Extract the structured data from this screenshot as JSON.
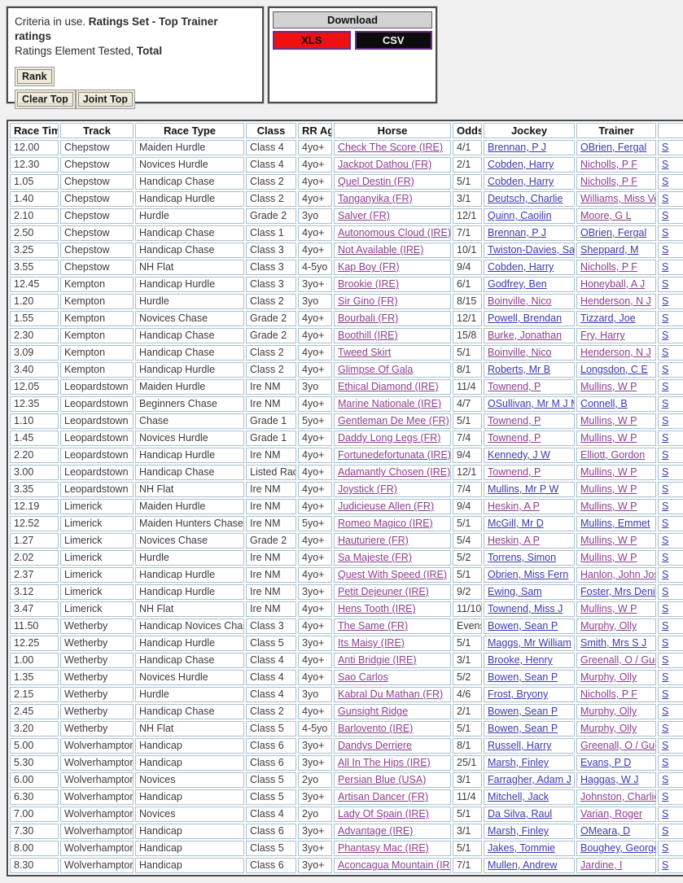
{
  "criteria_box": {
    "line1_prefix": "Criteria in use. ",
    "line1_bold": "Ratings Set - Top Trainer ratings",
    "line2_prefix": "Ratings Element Tested, ",
    "line2_bold": "Total",
    "rank_button": "Rank",
    "clear_top_button": "Clear Top",
    "joint_top_button": "Joint Top"
  },
  "download_box": {
    "title": "Download",
    "xls_button": "XLS",
    "csv_button": "CSV",
    "xls_color": "#ee1111",
    "csv_color": "#0c0c0c",
    "button_border_color": "#6a2d8f"
  },
  "link_colors": {
    "unvisited": "#3a3aae",
    "visited": "#8b3f8f"
  },
  "table": {
    "headers": [
      "Race Time",
      "Track",
      "Race Type",
      "Class",
      "RR Age",
      "Horse",
      "Odds",
      "Jockey",
      "Trainer"
    ],
    "clipped_header": "",
    "clipped_cell_text": "S",
    "rows": [
      {
        "time": "12.00",
        "track": "Chepstow",
        "race_type": "Maiden Hurdle",
        "race_class": "Class 4",
        "rr_age": "4yo+",
        "horse": "Check The Score (IRE)",
        "odds": "4/1",
        "jockey": "Brennan, P J",
        "trainer": "OBrien, Fergal",
        "jockey_visited": false,
        "trainer_visited": false
      },
      {
        "time": "12.30",
        "track": "Chepstow",
        "race_type": "Novices Hurdle",
        "race_class": "Class 4",
        "rr_age": "4yo+",
        "horse": "Jackpot Dathou (FR)",
        "odds": "2/1",
        "jockey": "Cobden, Harry",
        "trainer": "Nicholls, P F",
        "jockey_visited": false,
        "trainer_visited": true
      },
      {
        "time": "1.05",
        "track": "Chepstow",
        "race_type": "Handicap Chase",
        "race_class": "Class 2",
        "rr_age": "4yo+",
        "horse": "Quel Destin (FR)",
        "odds": "5/1",
        "jockey": "Cobden, Harry",
        "trainer": "Nicholls, P F",
        "jockey_visited": false,
        "trainer_visited": true
      },
      {
        "time": "1.40",
        "track": "Chepstow",
        "race_type": "Handicap Hurdle",
        "race_class": "Class 2",
        "rr_age": "4yo+",
        "horse": "Tanganyika (FR)",
        "odds": "3/1",
        "jockey": "Deutsch, Charlie",
        "trainer": "Williams, Miss Venetia",
        "jockey_visited": false,
        "trainer_visited": true
      },
      {
        "time": "2.10",
        "track": "Chepstow",
        "race_type": "Hurdle",
        "race_class": "Grade 2",
        "rr_age": "3yo",
        "horse": "Salver (FR)",
        "odds": "12/1",
        "jockey": "Quinn, Caoilin",
        "trainer": "Moore, G L",
        "jockey_visited": false,
        "trainer_visited": true
      },
      {
        "time": "2.50",
        "track": "Chepstow",
        "race_type": "Handicap Chase",
        "race_class": "Class 1",
        "rr_age": "4yo+",
        "horse": "Autonomous Cloud (IRE)",
        "odds": "7/1",
        "jockey": "Brennan, P J",
        "trainer": "OBrien, Fergal",
        "jockey_visited": false,
        "trainer_visited": false
      },
      {
        "time": "3.25",
        "track": "Chepstow",
        "race_type": "Handicap Chase",
        "race_class": "Class 3",
        "rr_age": "4yo+",
        "horse": "Not Available (IRE)",
        "odds": "10/1",
        "jockey": "Twiston-Davies, Sam",
        "trainer": "Sheppard, M",
        "jockey_visited": false,
        "trainer_visited": false
      },
      {
        "time": "3.55",
        "track": "Chepstow",
        "race_type": "NH Flat",
        "race_class": "Class 3",
        "rr_age": "4-5yo",
        "horse": "Kap Boy (FR)",
        "odds": "9/4",
        "jockey": "Cobden, Harry",
        "trainer": "Nicholls, P F",
        "jockey_visited": false,
        "trainer_visited": true
      },
      {
        "time": "12.45",
        "track": "Kempton",
        "race_type": "Handicap Hurdle",
        "race_class": "Class 3",
        "rr_age": "3yo+",
        "horse": "Brookie (IRE)",
        "odds": "6/1",
        "jockey": "Godfrey, Ben",
        "trainer": "Honeyball, A J",
        "jockey_visited": false,
        "trainer_visited": true
      },
      {
        "time": "1.20",
        "track": "Kempton",
        "race_type": "Hurdle",
        "race_class": "Class 2",
        "rr_age": "3yo",
        "horse": "Sir Gino (FR)",
        "odds": "8/15",
        "jockey": "Boinville, Nico",
        "trainer": "Henderson, N J",
        "jockey_visited": true,
        "trainer_visited": true
      },
      {
        "time": "1.55",
        "track": "Kempton",
        "race_type": "Novices Chase",
        "race_class": "Grade 2",
        "rr_age": "4yo+",
        "horse": "Bourbali (FR)",
        "odds": "12/1",
        "jockey": "Powell, Brendan",
        "trainer": "Tizzard, Joe",
        "jockey_visited": false,
        "trainer_visited": false
      },
      {
        "time": "2.30",
        "track": "Kempton",
        "race_type": "Handicap Chase",
        "race_class": "Grade 2",
        "rr_age": "4yo+",
        "horse": "Boothill (IRE)",
        "odds": "15/8",
        "jockey": "Burke, Jonathan",
        "trainer": "Fry, Harry",
        "jockey_visited": true,
        "trainer_visited": true
      },
      {
        "time": "3.09",
        "track": "Kempton",
        "race_type": "Handicap Chase",
        "race_class": "Class 2",
        "rr_age": "4yo+",
        "horse": "Tweed Skirt",
        "odds": "5/1",
        "jockey": "Boinville, Nico",
        "trainer": "Henderson, N J",
        "jockey_visited": true,
        "trainer_visited": true
      },
      {
        "time": "3.40",
        "track": "Kempton",
        "race_type": "Handicap Hurdle",
        "race_class": "Class 2",
        "rr_age": "4yo+",
        "horse": "Glimpse Of Gala",
        "odds": "8/1",
        "jockey": "Roberts, Mr B",
        "trainer": "Longsdon, C E",
        "jockey_visited": false,
        "trainer_visited": false
      },
      {
        "time": "12.05",
        "track": "Leopardstown",
        "race_type": "Maiden Hurdle",
        "race_class": "Ire NM",
        "rr_age": "3yo",
        "horse": "Ethical Diamond (IRE)",
        "odds": "11/4",
        "jockey": "Townend, P",
        "trainer": "Mullins, W P",
        "jockey_visited": true,
        "trainer_visited": true
      },
      {
        "time": "12.35",
        "track": "Leopardstown",
        "race_type": "Beginners Chase",
        "race_class": "Ire NM",
        "rr_age": "4yo+",
        "horse": "Marine Nationale (IRE)",
        "odds": "4/7",
        "jockey": "OSullivan, Mr M J M",
        "trainer": "Connell, B",
        "jockey_visited": false,
        "trainer_visited": false
      },
      {
        "time": "1.10",
        "track": "Leopardstown",
        "race_type": "Chase",
        "race_class": "Grade 1",
        "rr_age": "5yo+",
        "horse": "Gentleman De Mee (FR)",
        "odds": "5/1",
        "jockey": "Townend, P",
        "trainer": "Mullins, W P",
        "jockey_visited": true,
        "trainer_visited": true
      },
      {
        "time": "1.45",
        "track": "Leopardstown",
        "race_type": "Novices Hurdle",
        "race_class": "Grade 1",
        "rr_age": "4yo+",
        "horse": "Daddy Long Legs (FR)",
        "odds": "7/4",
        "jockey": "Townend, P",
        "trainer": "Mullins, W P",
        "jockey_visited": true,
        "trainer_visited": true
      },
      {
        "time": "2.20",
        "track": "Leopardstown",
        "race_type": "Handicap Hurdle",
        "race_class": "Ire NM",
        "rr_age": "4yo+",
        "horse": "Fortunedefortunata (IRE)",
        "odds": "9/4",
        "jockey": "Kennedy, J W",
        "trainer": "Elliott, Gordon",
        "jockey_visited": false,
        "trainer_visited": true
      },
      {
        "time": "3.00",
        "track": "Leopardstown",
        "race_type": "Handicap Chase",
        "race_class": "Listed Race",
        "rr_age": "4yo+",
        "horse": "Adamantly Chosen (IRE)",
        "odds": "12/1",
        "jockey": "Townend, P",
        "trainer": "Mullins, W P",
        "jockey_visited": true,
        "trainer_visited": true
      },
      {
        "time": "3.35",
        "track": "Leopardstown",
        "race_type": "NH Flat",
        "race_class": "Ire NM",
        "rr_age": "4yo+",
        "horse": "Joystick (FR)",
        "odds": "7/4",
        "jockey": "Mullins, Mr P W",
        "trainer": "Mullins, W P",
        "jockey_visited": false,
        "trainer_visited": true
      },
      {
        "time": "12.19",
        "track": "Limerick",
        "race_type": "Maiden Hurdle",
        "race_class": "Ire NM",
        "rr_age": "4yo+",
        "horse": "Judicieuse Allen (FR)",
        "odds": "9/4",
        "jockey": "Heskin, A P",
        "trainer": "Mullins, W P",
        "jockey_visited": true,
        "trainer_visited": true
      },
      {
        "time": "12.52",
        "track": "Limerick",
        "race_type": "Maiden Hunters Chase",
        "race_class": "Ire NM",
        "rr_age": "5yo+",
        "horse": "Romeo Magico (IRE)",
        "odds": "5/1",
        "jockey": "McGill, Mr D",
        "trainer": "Mullins, Emmet",
        "jockey_visited": false,
        "trainer_visited": false
      },
      {
        "time": "1.27",
        "track": "Limerick",
        "race_type": "Novices Chase",
        "race_class": "Grade 2",
        "rr_age": "4yo+",
        "horse": "Hauturiere (FR)",
        "odds": "5/4",
        "jockey": "Heskin, A P",
        "trainer": "Mullins, W P",
        "jockey_visited": true,
        "trainer_visited": true
      },
      {
        "time": "2.02",
        "track": "Limerick",
        "race_type": "Hurdle",
        "race_class": "Ire NM",
        "rr_age": "4yo+",
        "horse": "Sa Majeste (FR)",
        "odds": "5/2",
        "jockey": "Torrens, Simon",
        "trainer": "Mullins, W P",
        "jockey_visited": false,
        "trainer_visited": true
      },
      {
        "time": "2.37",
        "track": "Limerick",
        "race_type": "Handicap Hurdle",
        "race_class": "Ire NM",
        "rr_age": "4yo+",
        "horse": "Quest With Speed (IRE)",
        "odds": "5/1",
        "jockey": "Obrien, Miss Fern",
        "trainer": "Hanlon, John Joseph",
        "jockey_visited": false,
        "trainer_visited": true
      },
      {
        "time": "3.12",
        "track": "Limerick",
        "race_type": "Handicap Hurdle",
        "race_class": "Ire NM",
        "rr_age": "3yo+",
        "horse": "Petit Dejeuner (IRE)",
        "odds": "9/2",
        "jockey": "Ewing, Sam",
        "trainer": "Foster, Mrs Denise",
        "jockey_visited": false,
        "trainer_visited": false
      },
      {
        "time": "3.47",
        "track": "Limerick",
        "race_type": "NH Flat",
        "race_class": "Ire NM",
        "rr_age": "4yo+",
        "horse": "Hens Tooth (IRE)",
        "odds": "11/10",
        "jockey": "Townend, Miss J",
        "trainer": "Mullins, W P",
        "jockey_visited": false,
        "trainer_visited": true
      },
      {
        "time": "11.50",
        "track": "Wetherby",
        "race_type": "Handicap Novices Chase",
        "race_class": "Class 3",
        "rr_age": "4yo+",
        "horse": "The Same (FR)",
        "odds": "Evens",
        "jockey": "Bowen, Sean P",
        "trainer": "Murphy, Olly",
        "jockey_visited": false,
        "trainer_visited": true
      },
      {
        "time": "12.25",
        "track": "Wetherby",
        "race_type": "Handicap Hurdle",
        "race_class": "Class 5",
        "rr_age": "3yo+",
        "horse": "Its Maisy (IRE)",
        "odds": "5/1",
        "jockey": "Maggs, Mr William",
        "trainer": "Smith, Mrs S J",
        "jockey_visited": false,
        "trainer_visited": false
      },
      {
        "time": "1.00",
        "track": "Wetherby",
        "race_type": "Handicap Chase",
        "race_class": "Class 4",
        "rr_age": "4yo+",
        "horse": "Anti Bridgie (IRE)",
        "odds": "3/1",
        "jockey": "Brooke, Henry",
        "trainer": "Greenall, O / Guerriero, J",
        "jockey_visited": false,
        "trainer_visited": true
      },
      {
        "time": "1.35",
        "track": "Wetherby",
        "race_type": "Novices Hurdle",
        "race_class": "Class 4",
        "rr_age": "4yo+",
        "horse": "Sao Carlos",
        "odds": "5/2",
        "jockey": "Bowen, Sean P",
        "trainer": "Murphy, Olly",
        "jockey_visited": false,
        "trainer_visited": true
      },
      {
        "time": "2.15",
        "track": "Wetherby",
        "race_type": "Hurdle",
        "race_class": "Class 4",
        "rr_age": "3yo",
        "horse": "Kabral Du Mathan (FR)",
        "odds": "4/6",
        "jockey": "Frost, Bryony",
        "trainer": "Nicholls, P F",
        "jockey_visited": false,
        "trainer_visited": true
      },
      {
        "time": "2.45",
        "track": "Wetherby",
        "race_type": "Handicap Chase",
        "race_class": "Class 2",
        "rr_age": "4yo+",
        "horse": "Gunsight Ridge",
        "odds": "2/1",
        "jockey": "Bowen, Sean P",
        "trainer": "Murphy, Olly",
        "jockey_visited": false,
        "trainer_visited": true
      },
      {
        "time": "3.20",
        "track": "Wetherby",
        "race_type": "NH Flat",
        "race_class": "Class 5",
        "rr_age": "4-5yo",
        "horse": "Barlovento (IRE)",
        "odds": "5/1",
        "jockey": "Bowen, Sean P",
        "trainer": "Murphy, Olly",
        "jockey_visited": false,
        "trainer_visited": true
      },
      {
        "time": "5.00",
        "track": "Wolverhampton",
        "race_type": "Handicap",
        "race_class": "Class 6",
        "rr_age": "3yo+",
        "horse": "Dandys Derriere",
        "odds": "8/1",
        "jockey": "Russell, Harry",
        "trainer": "Greenall, O / Guerriero, J",
        "jockey_visited": false,
        "trainer_visited": true
      },
      {
        "time": "5.30",
        "track": "Wolverhampton",
        "race_type": "Handicap",
        "race_class": "Class 6",
        "rr_age": "3yo+",
        "horse": "All In The Hips (IRE)",
        "odds": "25/1",
        "jockey": "Marsh, Finley",
        "trainer": "Evans, P D",
        "jockey_visited": false,
        "trainer_visited": false
      },
      {
        "time": "6.00",
        "track": "Wolverhampton",
        "race_type": "Novices",
        "race_class": "Class 5",
        "rr_age": "2yo",
        "horse": "Persian Blue (USA)",
        "odds": "3/1",
        "jockey": "Farragher, Adam J",
        "trainer": "Haggas, W J",
        "jockey_visited": false,
        "trainer_visited": false
      },
      {
        "time": "6.30",
        "track": "Wolverhampton",
        "race_type": "Handicap",
        "race_class": "Class 5",
        "rr_age": "3yo+",
        "horse": "Artisan Dancer (FR)",
        "odds": "11/4",
        "jockey": "Mitchell, Jack",
        "trainer": "Johnston, Charlie",
        "jockey_visited": false,
        "trainer_visited": true
      },
      {
        "time": "7.00",
        "track": "Wolverhampton",
        "race_type": "Novices",
        "race_class": "Class 4",
        "rr_age": "2yo",
        "horse": "Lady Of Spain (IRE)",
        "odds": "5/1",
        "jockey": "Da Silva, Raul",
        "trainer": "Varian, Roger",
        "jockey_visited": false,
        "trainer_visited": true
      },
      {
        "time": "7.30",
        "track": "Wolverhampton",
        "race_type": "Handicap",
        "race_class": "Class 6",
        "rr_age": "3yo+",
        "horse": "Advantage (IRE)",
        "odds": "3/1",
        "jockey": "Marsh, Finley",
        "trainer": "OMeara, D",
        "jockey_visited": false,
        "trainer_visited": false
      },
      {
        "time": "8.00",
        "track": "Wolverhampton",
        "race_type": "Handicap",
        "race_class": "Class 5",
        "rr_age": "3yo+",
        "horse": "Phantasy Mac (IRE)",
        "odds": "5/1",
        "jockey": "Jakes, Tommie",
        "trainer": "Boughey, George",
        "jockey_visited": false,
        "trainer_visited": false
      },
      {
        "time": "8.30",
        "track": "Wolverhampton",
        "race_type": "Handicap",
        "race_class": "Class 6",
        "rr_age": "3yo+",
        "horse": "Aconcagua Mountain (IRE)",
        "odds": "7/1",
        "jockey": "Mullen, Andrew",
        "trainer": "Jardine, I",
        "jockey_visited": false,
        "trainer_visited": true
      }
    ]
  }
}
